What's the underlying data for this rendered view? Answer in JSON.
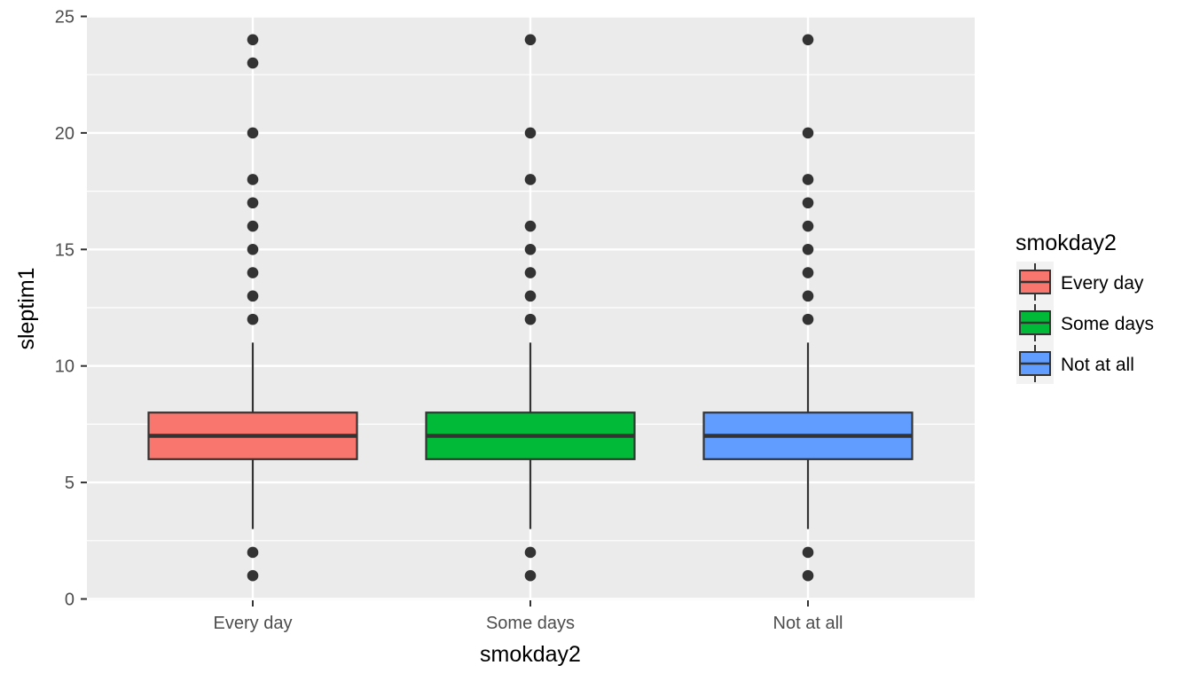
{
  "chart_data": {
    "type": "boxplot",
    "xlabel": "smokday2",
    "ylabel": "sleptim1",
    "categories": [
      "Every day",
      "Some days",
      "Not at all"
    ],
    "ylim": [
      0,
      25
    ],
    "yticks": [
      0,
      5,
      10,
      15,
      20,
      25
    ],
    "grid": true,
    "legend": {
      "title": "smokday2",
      "placement": "right",
      "entries": [
        "Every day",
        "Some days",
        "Not at all"
      ]
    },
    "series": [
      {
        "category": "Every day",
        "color": "#F8766D",
        "whisker_low": 3,
        "q1": 6,
        "median": 7,
        "q3": 8,
        "whisker_high": 11,
        "outliers": [
          1,
          2,
          12,
          13,
          14,
          15,
          16,
          17,
          18,
          20,
          23,
          24
        ]
      },
      {
        "category": "Some days",
        "color": "#00BA38",
        "whisker_low": 3,
        "q1": 6,
        "median": 7,
        "q3": 8,
        "whisker_high": 11,
        "outliers": [
          1,
          2,
          12,
          13,
          14,
          15,
          16,
          18,
          20,
          24
        ]
      },
      {
        "category": "Not at all",
        "color": "#619CFF",
        "whisker_low": 3,
        "q1": 6,
        "median": 7,
        "q3": 8,
        "whisker_high": 11,
        "outliers": [
          1,
          2,
          12,
          13,
          14,
          15,
          16,
          17,
          18,
          20,
          24
        ]
      }
    ],
    "colors": {
      "panel": "#EBEBEB",
      "grid": "#FFFFFF",
      "point": "#333333",
      "line": "#333333"
    }
  }
}
